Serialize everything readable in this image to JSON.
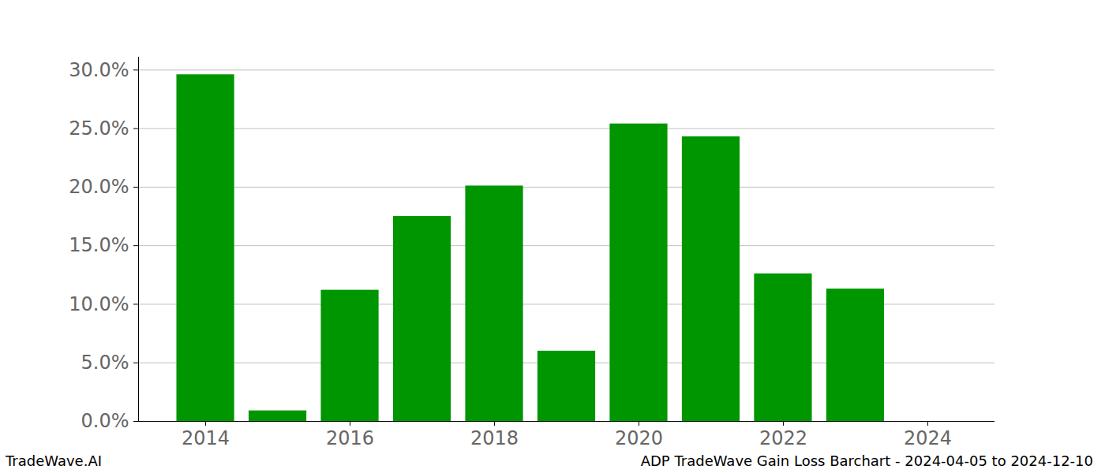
{
  "chart_data": {
    "type": "bar",
    "title": "ADP TradeWave Gain Loss Barchart - 2024-04-05 to 2024-12-10",
    "credit": "TradeWave.AI",
    "x": [
      2014,
      2015,
      2016,
      2017,
      2018,
      2019,
      2020,
      2021,
      2022,
      2023
    ],
    "values": [
      29.6,
      0.9,
      11.2,
      17.5,
      20.1,
      6.0,
      25.4,
      24.3,
      12.6,
      11.3
    ],
    "color": "#009600",
    "xlim": [
      2013.07,
      2024.93
    ],
    "xticks": [
      2014,
      2016,
      2018,
      2020,
      2022,
      2024
    ],
    "ylim": [
      0,
      31.1
    ],
    "yticks": [
      {
        "value": 0,
        "label": "0.0%"
      },
      {
        "value": 5,
        "label": "5.0%"
      },
      {
        "value": 10,
        "label": "10.0%"
      },
      {
        "value": 15,
        "label": "15.0%"
      },
      {
        "value": 20,
        "label": "20.0%"
      },
      {
        "value": 25,
        "label": "25.0%"
      },
      {
        "value": 30,
        "label": "30.0%"
      }
    ],
    "grid": true
  }
}
